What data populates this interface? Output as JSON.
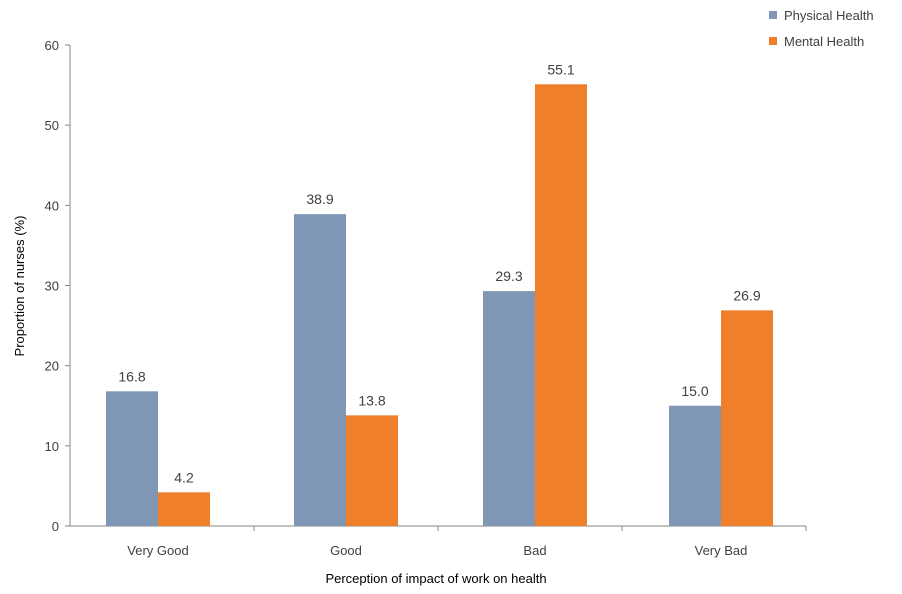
{
  "chart_data": {
    "type": "bar",
    "categories": [
      "Very Good",
      "Good",
      "Bad",
      "Very Bad"
    ],
    "series": [
      {
        "name": "Physical Health",
        "values": [
          16.8,
          38.9,
          29.3,
          15.0
        ],
        "labels": [
          "16.8",
          "38.9",
          "29.3",
          "15.0"
        ],
        "color": "#7F96B4"
      },
      {
        "name": "Mental Health",
        "values": [
          4.2,
          13.8,
          55.1,
          26.9
        ],
        "labels": [
          "4.2",
          "13.8",
          "55.1",
          "26.9"
        ],
        "color": "#F07F2C"
      }
    ],
    "title": "",
    "xlabel": "Perception of impact of work on health",
    "ylabel": "Proportion of nurses (%)",
    "ylim": [
      0,
      60
    ],
    "yticks": [
      0,
      10,
      20,
      30,
      40,
      50,
      60
    ],
    "grid": false,
    "legend_position": "top-right"
  }
}
